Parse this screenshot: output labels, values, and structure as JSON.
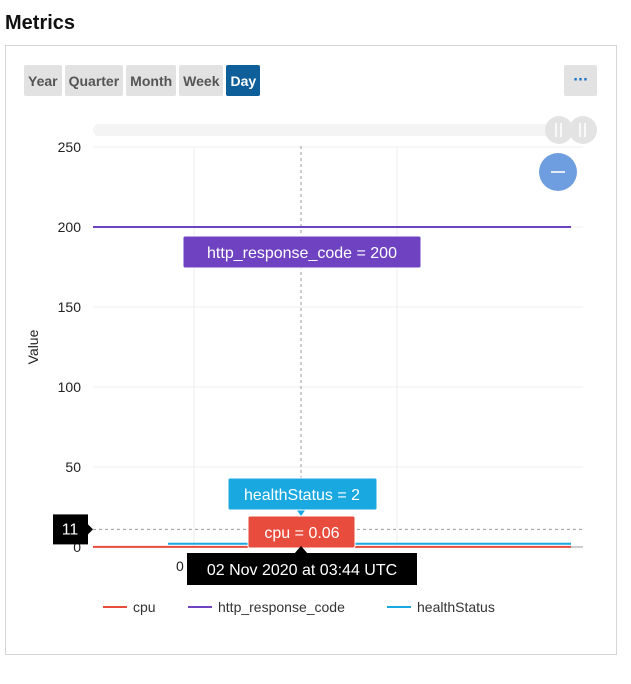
{
  "page": {
    "title": "Metrics"
  },
  "range_buttons": [
    {
      "label": "Year",
      "active": false
    },
    {
      "label": "Quarter",
      "active": false
    },
    {
      "label": "Month",
      "active": false
    },
    {
      "label": "Week",
      "active": false
    },
    {
      "label": "Day",
      "active": true
    }
  ],
  "more_button": {
    "label": "···"
  },
  "zoom_out_icon": "minus-icon",
  "colors": {
    "cpu": "#e84c3d",
    "http_response_code": "#6f42c1",
    "healthStatus": "#19a8e0",
    "active_button": "#0d5e99",
    "zoom_button": "#6f9ee0"
  },
  "chart_data": {
    "type": "line",
    "ylabel": "Value",
    "ylim": [
      0,
      250
    ],
    "yticks": [
      0,
      50,
      100,
      150,
      200,
      250
    ],
    "grid": true,
    "legend_position": "bottom",
    "series": [
      {
        "name": "cpu",
        "value": 0.06
      },
      {
        "name": "http_response_code",
        "value": 200
      },
      {
        "name": "healthStatus",
        "value": 2
      }
    ],
    "crosshair": {
      "time_label": "02 Nov 2020 at 03:44 UTC",
      "y_readout": "11"
    },
    "tooltips": [
      {
        "series": "http_response_code",
        "text": "http_response_code = 200"
      },
      {
        "series": "healthStatus",
        "text": "healthStatus = 2"
      },
      {
        "series": "cpu",
        "text": "cpu = 0.06"
      }
    ],
    "partial_x_tick": "0"
  }
}
